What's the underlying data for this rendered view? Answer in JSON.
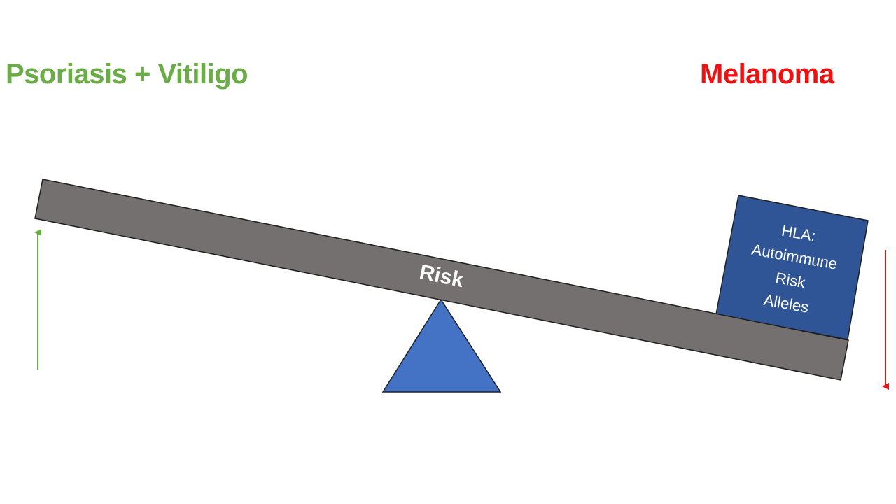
{
  "left_outcome": {
    "label": "Psoriasis + Vitiligo",
    "color": "#6aac46",
    "arrow_direction": "up"
  },
  "right_outcome": {
    "label": "Melanoma",
    "color": "#ee1111",
    "arrow_direction": "down"
  },
  "beam": {
    "label": "Risk",
    "color": "#757070"
  },
  "fulcrum": {
    "color": "#4472c4"
  },
  "weight_box": {
    "lines": [
      "HLA:",
      "Autoimmune",
      "Risk",
      "Alleles"
    ],
    "color": "#2f5597"
  }
}
